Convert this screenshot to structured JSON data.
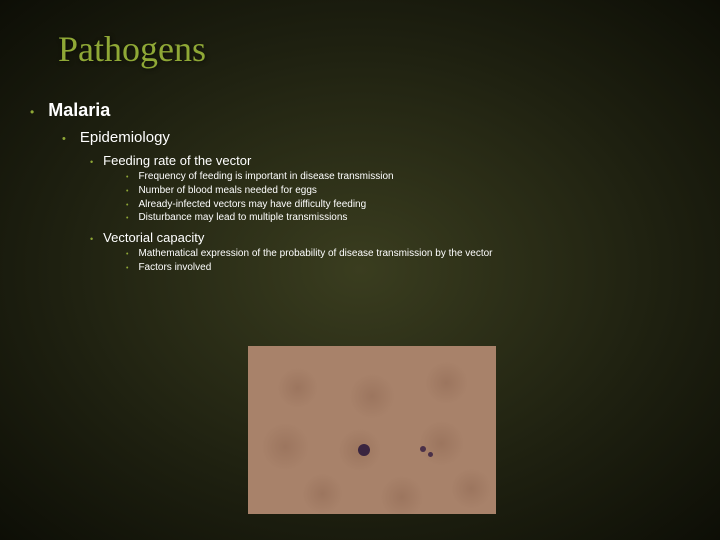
{
  "title": "Pathogens",
  "outline": {
    "lvl1": "Malaria",
    "lvl2": "Epidemiology",
    "lvl3a": "Feeding rate of the vector",
    "lvl3a_items": [
      "Frequency of feeding is important in disease transmission",
      "Number of blood meals needed for eggs",
      "Already-infected vectors may have difficulty feeding",
      "Disturbance may lead to multiple transmissions"
    ],
    "lvl3b": "Vectorial capacity",
    "lvl3b_items": [
      "Mathematical expression of the probability of disease transmission by the vector",
      "Factors involved"
    ]
  },
  "colors": {
    "accent": "#8fa836",
    "bg_center": "#3a3d1f",
    "bg_edge": "#0d0e06",
    "text": "#ffffff",
    "image_bg": "#a8826a"
  }
}
